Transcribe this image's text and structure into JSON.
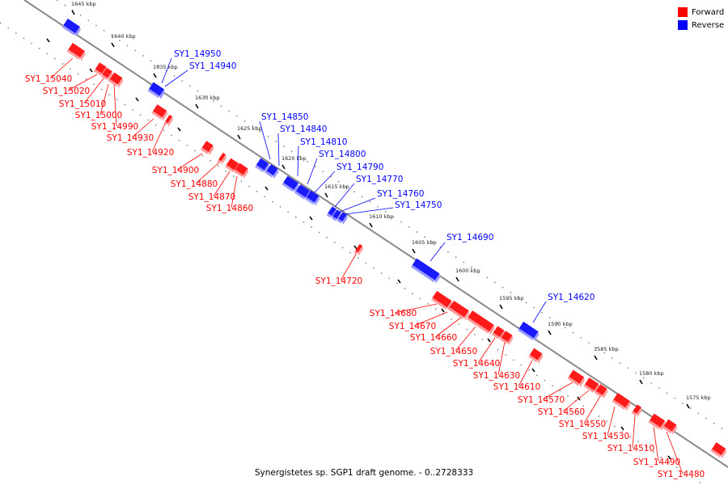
{
  "caption": "Synergistetes sp. SGP1 draft genome. - 0..2728333",
  "legend": [
    {
      "label": "Forward",
      "color": "#ff0000"
    },
    {
      "label": "Reverse",
      "color": "#0000ff"
    }
  ],
  "scale_labels": [
    "1645 kbp",
    "1640 kbp",
    "1635 kbp",
    "1630 kbp",
    "1625 kbp",
    "1620 kbp",
    "1615 kbp",
    "1610 kbp",
    "1605 kbp",
    "1600 kbp",
    "1595 kbp",
    "1590 kbp",
    "1585 kbp",
    "1580 kbp",
    "1575 kbp"
  ],
  "reverse_genes": [
    "SY1_14950",
    "SY1_14940",
    "SY1_14850",
    "SY1_14840",
    "SY1_14810",
    "SY1_14800",
    "SY1_14790",
    "SY1_14770",
    "SY1_14760",
    "SY1_14750",
    "SY1_14690",
    "SY1_14620"
  ],
  "forward_genes": [
    "SY1_15040",
    "SY1_15020",
    "SY1_15010",
    "SY1_15000",
    "SY1_14990",
    "SY1_14930",
    "SY1_14920",
    "SY1_14900",
    "SY1_14880",
    "SY1_14870",
    "SY1_14860",
    "SY1_14720",
    "SY1_14680",
    "SY1_14670",
    "SY1_14660",
    "SY1_14650",
    "SY1_14640",
    "SY1_14630",
    "SY1_14610",
    "SY1_14570",
    "SY1_14560",
    "SY1_14550",
    "SY1_14530",
    "SY1_14510",
    "SY1_14490",
    "SY1_14480"
  ]
}
